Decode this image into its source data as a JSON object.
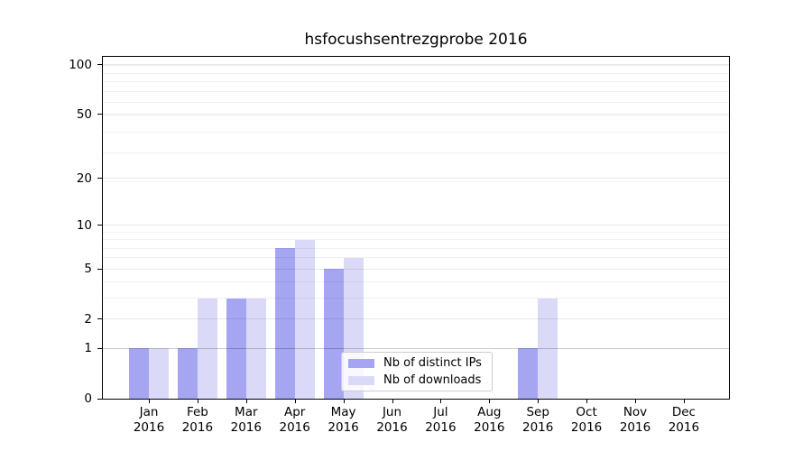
{
  "chart_data": {
    "type": "bar",
    "title": "hsfocushsentrezgprobe 2016",
    "categories": [
      "Jan",
      "Feb",
      "Mar",
      "Apr",
      "May",
      "Jun",
      "Jul",
      "Aug",
      "Sep",
      "Oct",
      "Nov",
      "Dec"
    ],
    "year": "2016",
    "series": [
      {
        "name": "Nb of distinct IPs",
        "color": "#a5a5f2",
        "values": [
          1,
          1,
          3,
          7,
          5,
          0,
          0,
          0,
          1,
          0,
          0,
          0
        ]
      },
      {
        "name": "Nb of downloads",
        "color": "#dadaf8",
        "values": [
          1,
          3,
          3,
          8,
          6,
          0,
          0,
          0,
          3,
          0,
          0,
          0
        ]
      }
    ],
    "xlabel": "",
    "ylabel": "",
    "yscale": "log1p",
    "yticks": [
      0,
      1,
      2,
      5,
      10,
      20,
      50,
      100
    ],
    "ylim": [
      0,
      112
    ],
    "grid": true,
    "legend_position": "lower center"
  }
}
